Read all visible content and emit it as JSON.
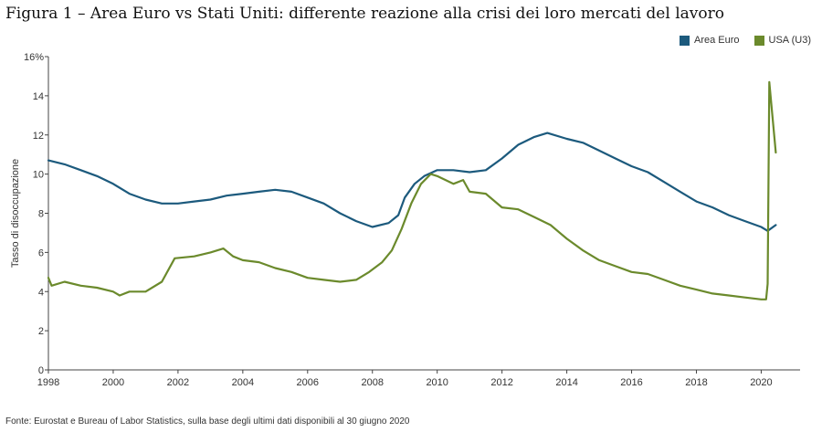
{
  "title": "Figura 1 – Area Euro vs Stati Uniti: differente reazione alla crisi dei loro mercati del lavoro",
  "source": "Fonte: Eurostat e Bureau of Labor Statistics, sulla base degli ultimi dati disponibili al 30 giugno 2020",
  "colors": {
    "euro": "#1c5a7d",
    "usa": "#6b8a2c",
    "axis": "#444444",
    "text": "#333333"
  },
  "chart_data": {
    "type": "line",
    "title": "Figura 1 – Area Euro vs Stati Uniti: differente reazione alla crisi dei loro mercati del lavoro",
    "xlabel": "",
    "ylabel": "Tasso di disoccupazione",
    "xlim": [
      1998,
      2021.2
    ],
    "ylim": [
      0,
      16
    ],
    "x_ticks": [
      {
        "value": 1998,
        "label": "1998"
      },
      {
        "value": 2000,
        "label": "2000"
      },
      {
        "value": 2002,
        "label": "2002"
      },
      {
        "value": 2004,
        "label": "2004"
      },
      {
        "value": 2006,
        "label": "2006"
      },
      {
        "value": 2008,
        "label": "2008"
      },
      {
        "value": 2010,
        "label": "2010"
      },
      {
        "value": 2012,
        "label": "2012"
      },
      {
        "value": 2014,
        "label": "2014"
      },
      {
        "value": 2016,
        "label": "2016"
      },
      {
        "value": 2018,
        "label": "2018"
      },
      {
        "value": 2020,
        "label": "2020"
      }
    ],
    "y_ticks": [
      {
        "value": 0,
        "label": "0"
      },
      {
        "value": 2,
        "label": "2"
      },
      {
        "value": 4,
        "label": "4"
      },
      {
        "value": 6,
        "label": "6"
      },
      {
        "value": 8,
        "label": "8"
      },
      {
        "value": 10,
        "label": "10"
      },
      {
        "value": 12,
        "label": "12"
      },
      {
        "value": 14,
        "label": "14"
      },
      {
        "value": 16,
        "label": "16%"
      }
    ],
    "grid": false,
    "legend_position": "top-right",
    "series": [
      {
        "name": "Area Euro",
        "color": "#1c5a7d",
        "points": [
          [
            1998.0,
            10.7
          ],
          [
            1998.5,
            10.5
          ],
          [
            1999.0,
            10.2
          ],
          [
            1999.5,
            9.9
          ],
          [
            2000.0,
            9.5
          ],
          [
            2000.5,
            9.0
          ],
          [
            2001.0,
            8.7
          ],
          [
            2001.5,
            8.5
          ],
          [
            2002.0,
            8.5
          ],
          [
            2002.5,
            8.6
          ],
          [
            2003.0,
            8.7
          ],
          [
            2003.5,
            8.9
          ],
          [
            2004.0,
            9.0
          ],
          [
            2004.5,
            9.1
          ],
          [
            2005.0,
            9.2
          ],
          [
            2005.5,
            9.1
          ],
          [
            2006.0,
            8.8
          ],
          [
            2006.5,
            8.5
          ],
          [
            2007.0,
            8.0
          ],
          [
            2007.5,
            7.6
          ],
          [
            2008.0,
            7.3
          ],
          [
            2008.5,
            7.5
          ],
          [
            2008.8,
            7.9
          ],
          [
            2009.0,
            8.8
          ],
          [
            2009.3,
            9.5
          ],
          [
            2009.6,
            9.9
          ],
          [
            2010.0,
            10.2
          ],
          [
            2010.5,
            10.2
          ],
          [
            2011.0,
            10.1
          ],
          [
            2011.5,
            10.2
          ],
          [
            2012.0,
            10.8
          ],
          [
            2012.5,
            11.5
          ],
          [
            2013.0,
            11.9
          ],
          [
            2013.4,
            12.1
          ],
          [
            2014.0,
            11.8
          ],
          [
            2014.5,
            11.6
          ],
          [
            2015.0,
            11.2
          ],
          [
            2015.5,
            10.8
          ],
          [
            2016.0,
            10.4
          ],
          [
            2016.5,
            10.1
          ],
          [
            2017.0,
            9.6
          ],
          [
            2017.5,
            9.1
          ],
          [
            2018.0,
            8.6
          ],
          [
            2018.5,
            8.3
          ],
          [
            2019.0,
            7.9
          ],
          [
            2019.5,
            7.6
          ],
          [
            2020.0,
            7.3
          ],
          [
            2020.2,
            7.1
          ],
          [
            2020.45,
            7.4
          ]
        ]
      },
      {
        "name": "USA (U3)",
        "color": "#6b8a2c",
        "points": [
          [
            1998.0,
            4.7
          ],
          [
            1998.1,
            4.3
          ],
          [
            1998.5,
            4.5
          ],
          [
            1999.0,
            4.3
          ],
          [
            1999.5,
            4.2
          ],
          [
            2000.0,
            4.0
          ],
          [
            2000.2,
            3.8
          ],
          [
            2000.5,
            4.0
          ],
          [
            2001.0,
            4.0
          ],
          [
            2001.5,
            4.5
          ],
          [
            2001.9,
            5.7
          ],
          [
            2002.5,
            5.8
          ],
          [
            2003.0,
            6.0
          ],
          [
            2003.4,
            6.2
          ],
          [
            2003.7,
            5.8
          ],
          [
            2004.0,
            5.6
          ],
          [
            2004.5,
            5.5
          ],
          [
            2005.0,
            5.2
          ],
          [
            2005.5,
            5.0
          ],
          [
            2006.0,
            4.7
          ],
          [
            2006.5,
            4.6
          ],
          [
            2007.0,
            4.5
          ],
          [
            2007.5,
            4.6
          ],
          [
            2007.9,
            5.0
          ],
          [
            2008.3,
            5.5
          ],
          [
            2008.6,
            6.1
          ],
          [
            2008.9,
            7.2
          ],
          [
            2009.2,
            8.5
          ],
          [
            2009.5,
            9.5
          ],
          [
            2009.8,
            10.0
          ],
          [
            2010.0,
            9.9
          ],
          [
            2010.5,
            9.5
          ],
          [
            2010.8,
            9.7
          ],
          [
            2011.0,
            9.1
          ],
          [
            2011.5,
            9.0
          ],
          [
            2012.0,
            8.3
          ],
          [
            2012.5,
            8.2
          ],
          [
            2013.0,
            7.8
          ],
          [
            2013.5,
            7.4
          ],
          [
            2014.0,
            6.7
          ],
          [
            2014.5,
            6.1
          ],
          [
            2015.0,
            5.6
          ],
          [
            2015.5,
            5.3
          ],
          [
            2016.0,
            5.0
          ],
          [
            2016.5,
            4.9
          ],
          [
            2017.0,
            4.6
          ],
          [
            2017.5,
            4.3
          ],
          [
            2018.0,
            4.1
          ],
          [
            2018.5,
            3.9
          ],
          [
            2019.0,
            3.8
          ],
          [
            2019.5,
            3.7
          ],
          [
            2020.0,
            3.6
          ],
          [
            2020.15,
            3.6
          ],
          [
            2020.2,
            4.4
          ],
          [
            2020.25,
            14.7
          ],
          [
            2020.45,
            11.1
          ]
        ]
      }
    ]
  }
}
